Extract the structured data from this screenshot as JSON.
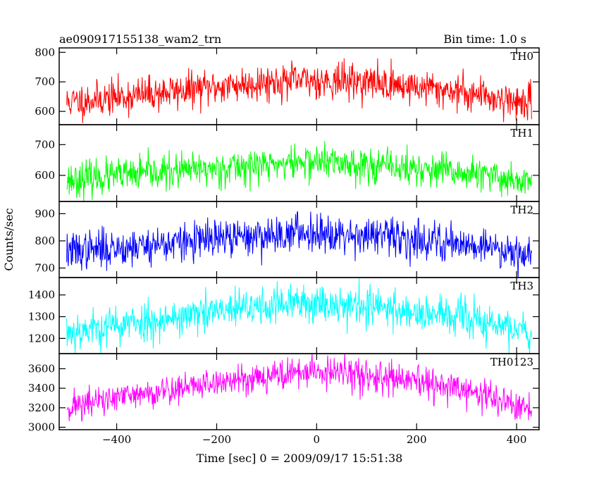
{
  "header": {
    "title": "ae090917155138_wam2_trn",
    "bin_time": "Bin time: 1.0 s"
  },
  "axes": {
    "ylabel": "Counts/sec",
    "xlabel": "Time [sec] 0 = 2009/09/17 15:51:38"
  },
  "chart_data": {
    "type": "line",
    "title": "ae090917155138_wam2_trn",
    "xlabel": "Time [sec] 0 = 2009/09/17 15:51:38",
    "ylabel": "Counts/sec",
    "xlim": [
      -515,
      445
    ],
    "x_start": -500,
    "x_end": 430,
    "x_step": 1,
    "x_ticks": [
      -400,
      -200,
      0,
      200,
      400
    ],
    "x_tick_labels": [
      "−400",
      "−200",
      "0",
      "200",
      "400"
    ],
    "panels": [
      {
        "name": "TH0",
        "color": "#ff0000",
        "ylim": [
          555,
          815
        ],
        "yticks": [
          600,
          700,
          800
        ],
        "curve": [
          [
            -500,
            630
          ],
          [
            -300,
            665
          ],
          [
            -100,
            700
          ],
          [
            0,
            705
          ],
          [
            100,
            700
          ],
          [
            300,
            665
          ],
          [
            430,
            625
          ]
        ],
        "noise_sd": 30,
        "seed": 11
      },
      {
        "name": "TH1",
        "color": "#00ff00",
        "ylim": [
          515,
          765
        ],
        "yticks": [
          600,
          700
        ],
        "curve": [
          [
            -500,
            585
          ],
          [
            -300,
            610
          ],
          [
            -100,
            635
          ],
          [
            0,
            645
          ],
          [
            100,
            635
          ],
          [
            300,
            605
          ],
          [
            430,
            580
          ]
        ],
        "noise_sd": 28,
        "seed": 23
      },
      {
        "name": "TH2",
        "color": "#0000ff",
        "ylim": [
          665,
          945
        ],
        "yticks": [
          700,
          800,
          900
        ],
        "curve": [
          [
            -500,
            760
          ],
          [
            -300,
            790
          ],
          [
            -100,
            820
          ],
          [
            0,
            835
          ],
          [
            100,
            820
          ],
          [
            300,
            790
          ],
          [
            430,
            755
          ]
        ],
        "noise_sd": 35,
        "seed": 37
      },
      {
        "name": "TH3",
        "color": "#00ffff",
        "ylim": [
          1130,
          1480
        ],
        "yticks": [
          1200,
          1300,
          1400
        ],
        "curve": [
          [
            -500,
            1230
          ],
          [
            -300,
            1290
          ],
          [
            -100,
            1350
          ],
          [
            0,
            1365
          ],
          [
            100,
            1350
          ],
          [
            300,
            1290
          ],
          [
            430,
            1225
          ]
        ],
        "noise_sd": 45,
        "seed": 53
      },
      {
        "name": "TH0123",
        "color": "#ff00ff",
        "ylim": [
          2975,
          3755
        ],
        "yticks": [
          3000,
          3200,
          3400,
          3600
        ],
        "curve": [
          [
            -500,
            3210
          ],
          [
            -300,
            3380
          ],
          [
            -100,
            3530
          ],
          [
            0,
            3570
          ],
          [
            100,
            3530
          ],
          [
            300,
            3380
          ],
          [
            430,
            3170
          ]
        ],
        "noise_sd": 80,
        "seed": 71
      }
    ]
  }
}
